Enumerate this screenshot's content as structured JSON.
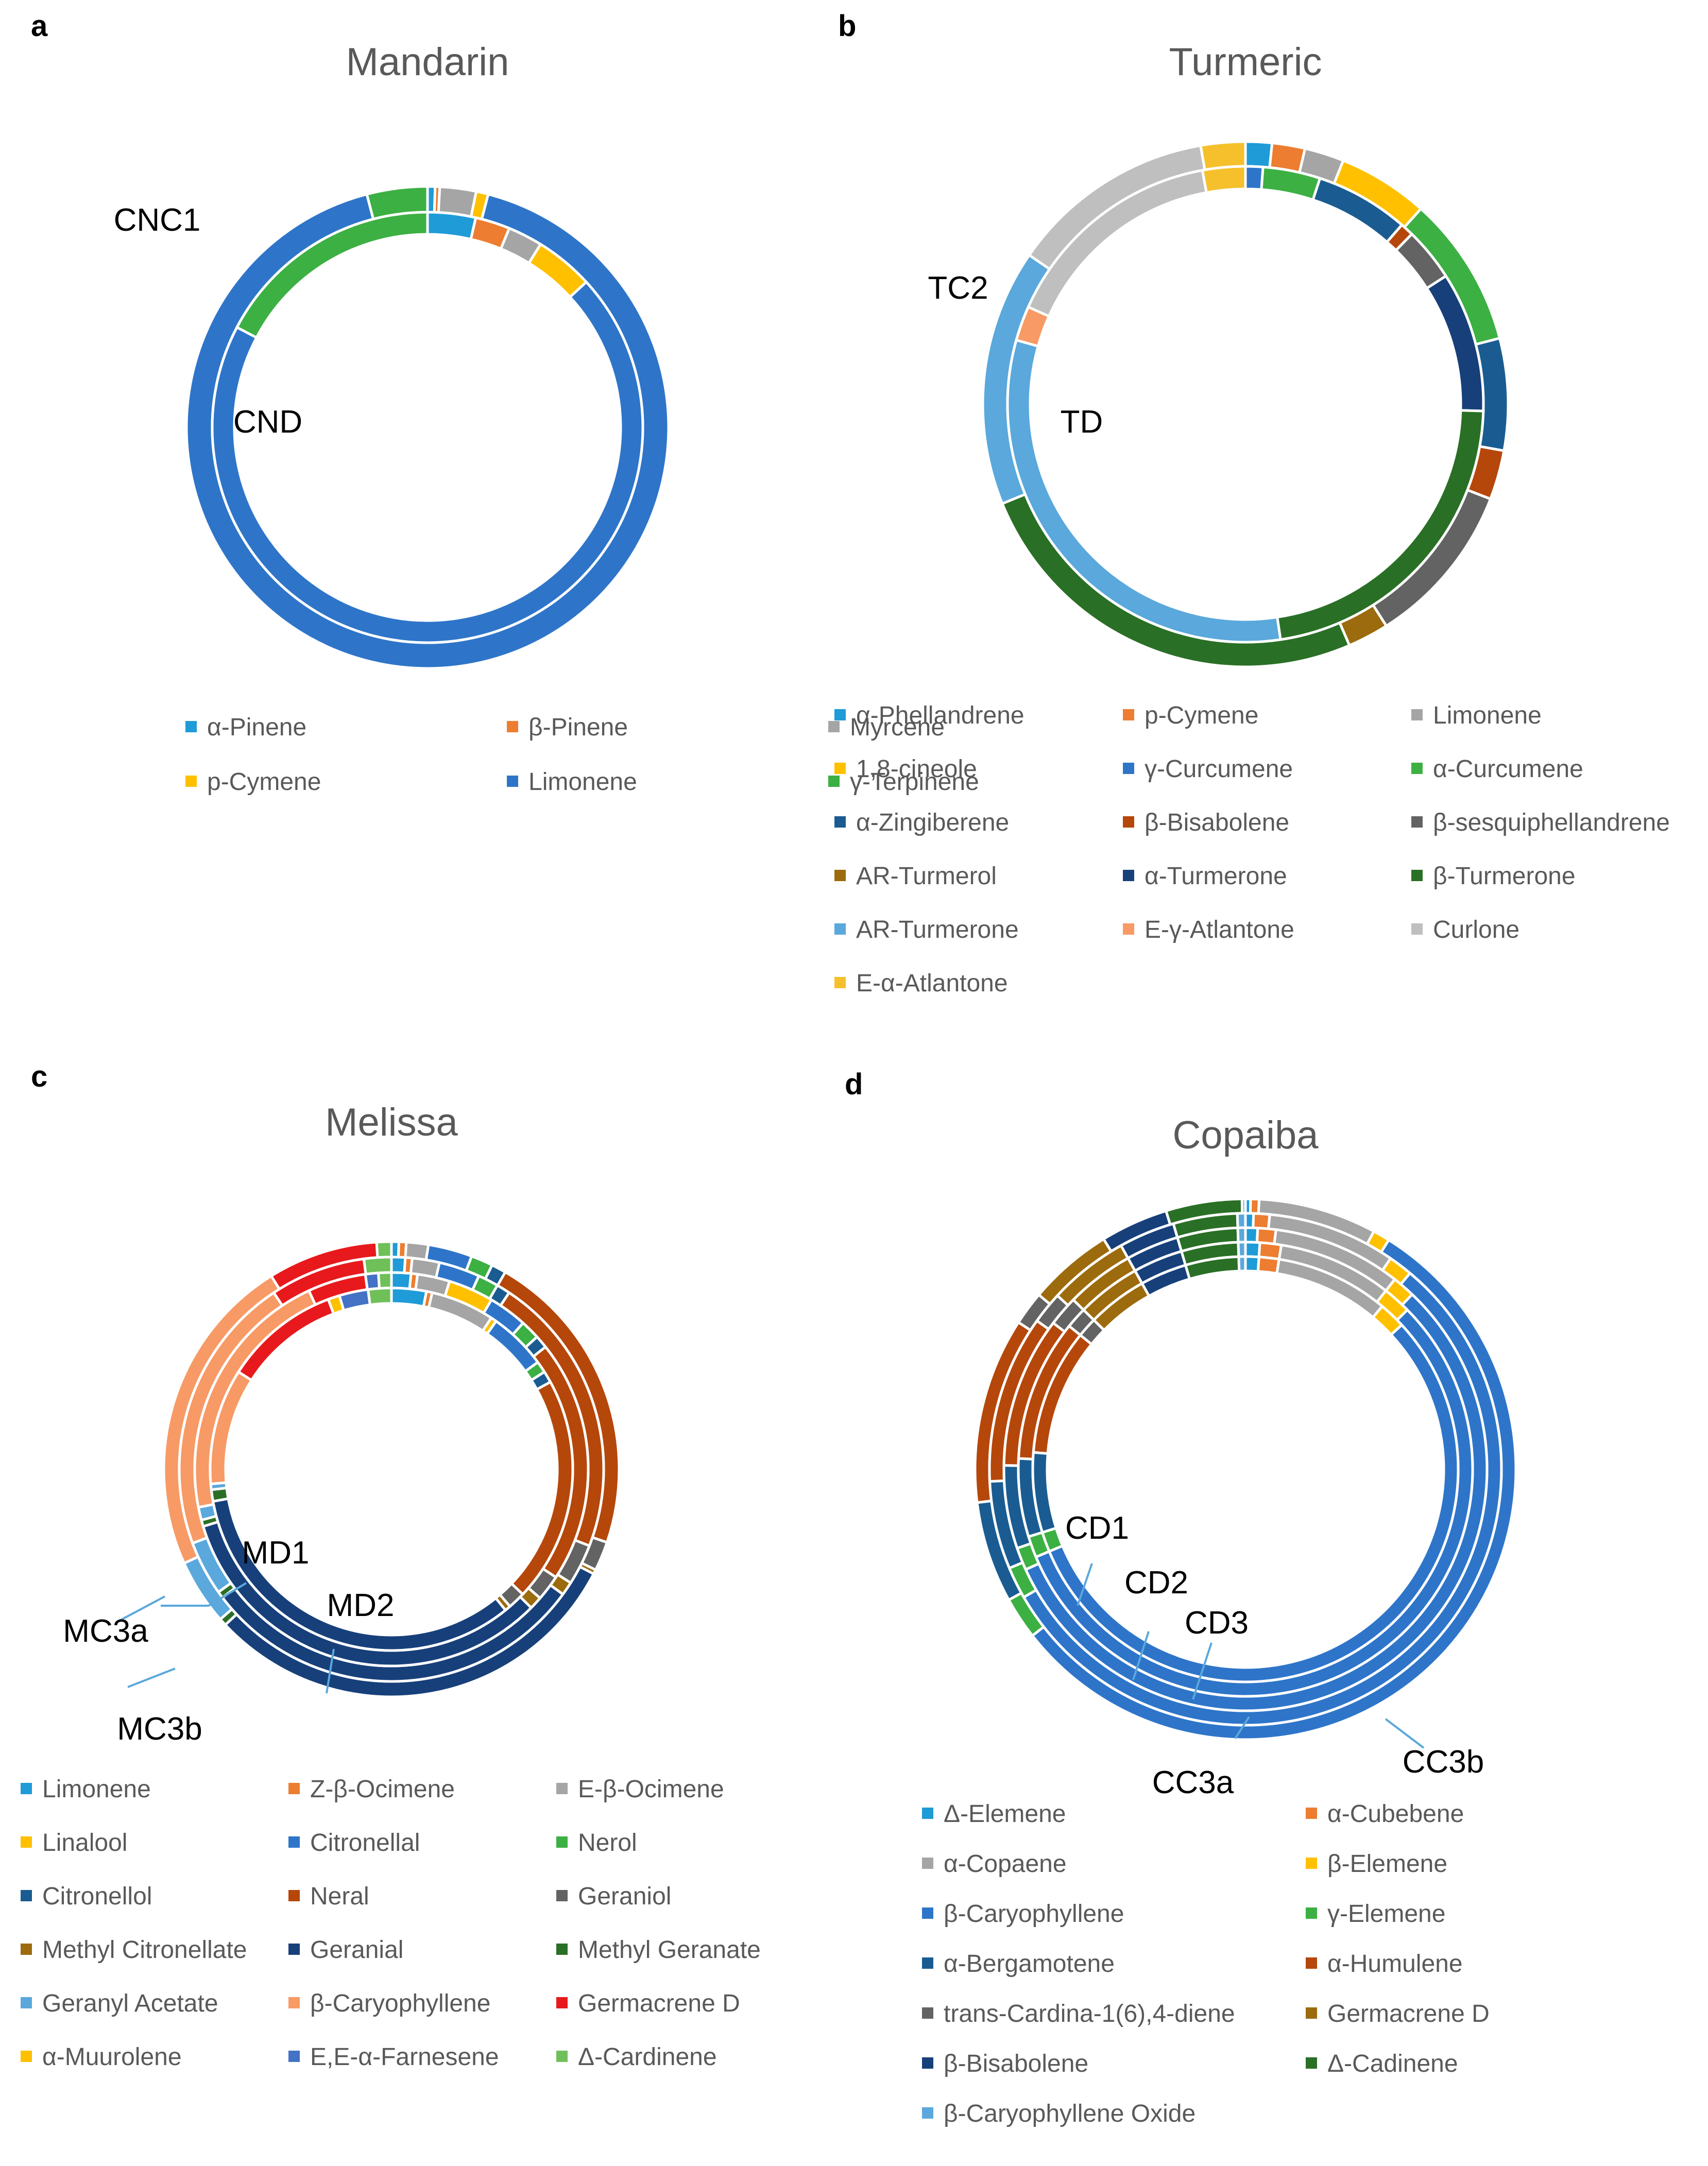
{
  "figure": {
    "panels": [
      "a",
      "b",
      "c",
      "d"
    ]
  },
  "chart_data": [
    {
      "type": "donut",
      "panel": "a",
      "title": "Mandarin",
      "categories": [
        "α-Pinene",
        "β-Pinene",
        "Myrcene",
        "p-Cymene",
        "Limonene",
        "γ-Terpinene"
      ],
      "colors": [
        "#1f9bd7",
        "#ed7d31",
        "#a5a5a5",
        "#ffc000",
        "#2e75c9",
        "#3cb043"
      ],
      "series": [
        {
          "name": "CNC1",
          "values": [
            0.5,
            0.3,
            2.4,
            0.8,
            90.7,
            4.0
          ]
        },
        {
          "name": "CND",
          "values": [
            3.6,
            2.6,
            2.6,
            4.4,
            69.5,
            17.3
          ]
        }
      ],
      "ring_labels": [
        "CNC1",
        "CND"
      ]
    },
    {
      "type": "donut",
      "panel": "b",
      "title": "Turmeric",
      "categories": [
        "α-Phellandrene",
        "p-Cymene",
        "Limonene",
        "1,8-cineole",
        "γ-Curcumene",
        "α-Curcumene",
        "α-Zingiberene",
        "β-Bisabolene",
        "β-sesquiphellandrene",
        "AR-Turmerol",
        "α-Turmerone",
        "β-Turmerone",
        "AR-Turmerone",
        "E-γ-Atlantone",
        "Curlone",
        "E-α-Atlantone"
      ],
      "colors": [
        "#1f9bd7",
        "#ed7d31",
        "#a5a5a5",
        "#ffc000",
        "#2e75c9",
        "#3cb043",
        "#1a5c91",
        "#b5470b",
        "#636363",
        "#9c6b0d",
        "#17407a",
        "#2a6f26",
        "#5aa8dc",
        "#f79a65",
        "#bfbfbf",
        "#f5c02b"
      ],
      "series": [
        {
          "name": "TC2",
          "values": [
            1.6,
            2.0,
            2.4,
            5.5,
            0,
            9.2,
            6.8,
            3.0,
            10.0,
            2.5,
            0,
            25.0,
            15.6,
            0,
            12.5,
            2.7
          ]
        },
        {
          "name": "TD",
          "values": [
            0,
            0,
            0,
            0,
            1.3,
            4.3,
            7.0,
            1.0,
            4.0,
            0,
            10.5,
            24.5,
            35.0,
            2.6,
            17.0,
            3.2
          ]
        }
      ],
      "ring_labels": [
        "TC2",
        "TD"
      ]
    },
    {
      "type": "donut",
      "panel": "c",
      "title": "Melissa",
      "categories": [
        "Limonene",
        "Z-β-Ocimene",
        "E-β-Ocimene",
        "Linalool",
        "Citronellal",
        "Nerol",
        "Citronellol",
        "Neral",
        "Geraniol",
        "Methyl Citronellate",
        "Geranial",
        "Methyl Geranate",
        "Geranyl Acetate",
        "β-Caryophyllene",
        "Germacrene D",
        "α-Muurolene",
        "E,E-α-Farnesene",
        "Δ-Cardinene"
      ],
      "colors": [
        "#1f9bd7",
        "#ed7d31",
        "#a5a5a5",
        "#ffc000",
        "#2e75c9",
        "#3cb043",
        "#1a5c91",
        "#b5470b",
        "#636363",
        "#9c6b0d",
        "#17407a",
        "#2a6f26",
        "#5aa8dc",
        "#f79a65",
        "#e8191c",
        "#ffc000",
        "#4472c4",
        "#70c05a"
      ],
      "series": [
        {
          "name": "MC3b",
          "values": [
            0.5,
            0.5,
            1.5,
            0,
            3.0,
            1.5,
            1.0,
            21.0,
            2.0,
            0.3,
            29.2,
            0.5,
            4.5,
            22.0,
            7.5,
            0,
            0,
            1.0
          ]
        },
        {
          "name": "MC3a",
          "values": [
            1.0,
            0.5,
            2.0,
            0,
            3.0,
            1.5,
            1.0,
            20.7,
            3.0,
            1.0,
            28.5,
            0.5,
            4.0,
            20.5,
            7.0,
            0,
            0,
            2.0
          ]
        },
        {
          "name": "MD2",
          "values": [
            1.5,
            0.5,
            2.5,
            3.5,
            3.0,
            1.5,
            1.0,
            18.8,
            2.0,
            1.0,
            31.0,
            0.5,
            1.0,
            20.0,
            4.5,
            0,
            1.0,
            1.0
          ]
        },
        {
          "name": "MD1",
          "values": [
            3.0,
            0.5,
            5.5,
            0.5,
            5.0,
            1.0,
            1.0,
            19.5,
            1.5,
            0.5,
            32.0,
            1.0,
            0.5,
            10.0,
            10.0,
            1.0,
            2.5,
            2.0
          ]
        }
      ],
      "ring_labels": [
        "MD1",
        "MD2",
        "MC3a",
        "MC3b"
      ]
    },
    {
      "type": "donut",
      "panel": "d",
      "title": "Copaiba",
      "categories": [
        "Δ-Elemene",
        "α-Cubebene",
        "α-Copaene",
        "β-Elemene",
        "β-Caryophyllene",
        "γ-Elemene",
        "α-Bergamotene",
        "α-Humulene",
        "trans-Cardina-1(6),4-diene",
        "Germacrene D",
        "β-Bisabolene",
        "Δ-Cadinene",
        "β-Caryophyllene Oxide"
      ],
      "colors": [
        "#1f9bd7",
        "#ed7d31",
        "#a5a5a5",
        "#ffc000",
        "#2e75c9",
        "#3cb043",
        "#1a5c91",
        "#b5470b",
        "#636363",
        "#9c6b0d",
        "#17407a",
        "#2a6f26",
        "#5aa8dc"
      ],
      "series": [
        {
          "name": "CC3b",
          "values": [
            0.3,
            0.5,
            7.0,
            1.0,
            55.0,
            2.5,
            6.0,
            11.0,
            2.0,
            5.0,
            4.0,
            4.5,
            0.2
          ]
        },
        {
          "name": "CC3a",
          "values": [
            0.5,
            1.0,
            8.0,
            1.5,
            55.0,
            2.0,
            5.5,
            10.5,
            2.0,
            5.0,
            3.5,
            4.0,
            0.5
          ]
        },
        {
          "name": "CD3",
          "values": [
            0.8,
            1.2,
            8.5,
            1.5,
            55.5,
            1.5,
            5.5,
            10.0,
            2.0,
            4.5,
            3.5,
            4.0,
            0.5
          ]
        },
        {
          "name": "CD2",
          "values": [
            1.0,
            1.5,
            8.0,
            2.0,
            55.5,
            1.5,
            5.5,
            10.0,
            1.5,
            4.5,
            3.5,
            4.0,
            0.5
          ]
        },
        {
          "name": "CD1",
          "values": [
            1.0,
            1.5,
            8.5,
            2.0,
            55.0,
            1.5,
            6.0,
            9.5,
            1.5,
            4.5,
            3.5,
            4.0,
            0.5
          ]
        }
      ],
      "ring_labels": [
        "CD1",
        "CD2",
        "CD3",
        "CC3a",
        "CC3b"
      ]
    }
  ]
}
